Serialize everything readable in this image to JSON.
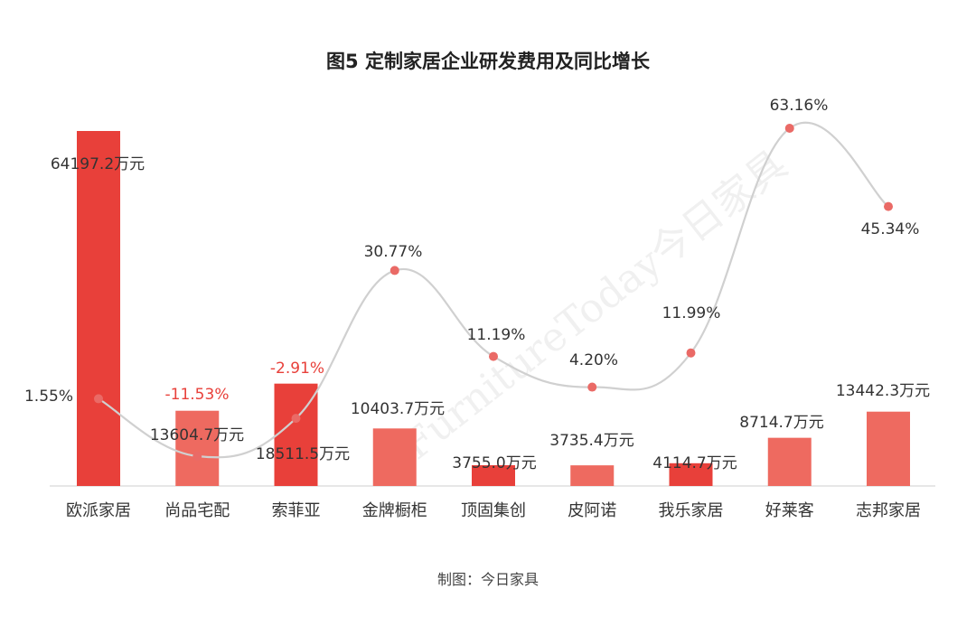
{
  "title": "图5  定制家居企业研发费用及同比增长",
  "source": "制图：今日家具",
  "watermark": "FurnitureToday今日家具",
  "chart_data": {
    "type": "bar",
    "categories": [
      "欧派家居",
      "尚品宅配",
      "索菲亚",
      "金牌橱柜",
      "顶固集创",
      "皮阿诺",
      "我乐家居",
      "好莱客",
      "志邦家居"
    ],
    "series": [
      {
        "values": [
          64197.2,
          13604.7,
          18511.5,
          10403.7,
          3755.0,
          3735.4,
          4114.7,
          8714.7,
          13442.3
        ],
        "labels": [
          "64197.2万元",
          "13604.7万元",
          "18511.5万元",
          "10403.7万元",
          "3755.0万元",
          "3735.4万元",
          "4114.7万元",
          "8714.7万元",
          "13442.3万元"
        ]
      },
      {
        "type": "line",
        "values": [
          1.55,
          -11.53,
          -2.91,
          30.77,
          11.19,
          4.2,
          11.99,
          63.16,
          45.34
        ],
        "labels": [
          "1.55%",
          "-11.53%",
          "-2.91%",
          "30.77%",
          "11.19%",
          "4.20%",
          "11.99%",
          "63.16%",
          "45.34%"
        ]
      }
    ],
    "colors": {
      "bar_strong": "#e8403a",
      "bar_light": "#ee6a60",
      "line": "#d0d0d0",
      "marker": "#ea6a66",
      "negative_label": "#e8403a",
      "text": "#333333"
    }
  }
}
